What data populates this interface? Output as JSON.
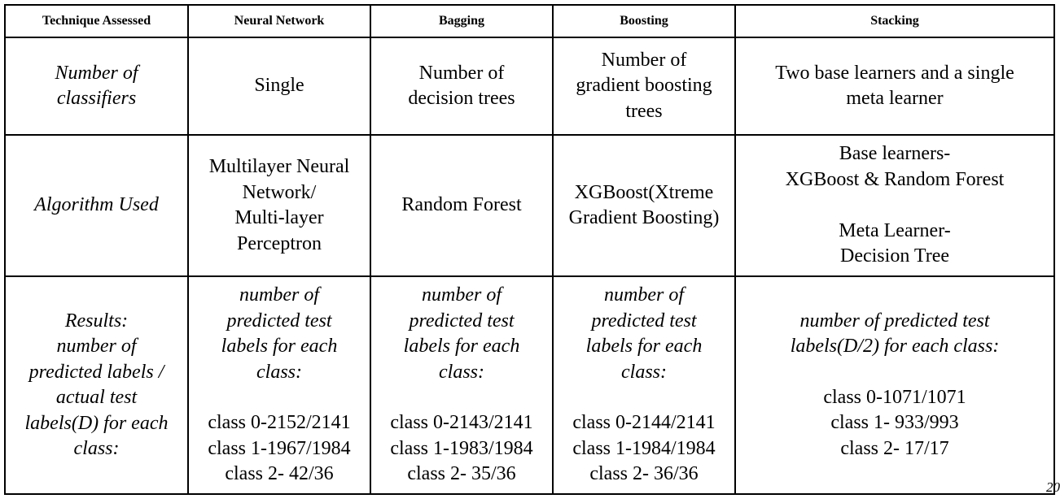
{
  "table": {
    "headers": [
      "Technique Assessed",
      "Neural Network",
      "Bagging",
      "Boosting",
      "Stacking"
    ],
    "rows": [
      {
        "label": "Number of\nclassifiers",
        "cells": [
          "Single",
          "Number of\ndecision trees",
          "Number of\ngradient boosting\ntrees",
          "Two base learners and a single\nmeta learner"
        ]
      },
      {
        "label": "Algorithm Used",
        "cells": [
          "Multilayer Neural\nNetwork/\nMulti-layer\nPerceptron",
          "Random Forest",
          "XGBoost(Xtreme\nGradient Boosting)",
          "Base learners-\nXGBoost & Random Forest\n\nMeta Learner-\nDecision Tree"
        ]
      },
      {
        "label": "Results:\nnumber of\npredicted labels /\nactual test\nlabels(D) for each\nclass:",
        "cells": [
          {
            "intro": "number of\npredicted test\nlabels for each\nclass:",
            "values": "class 0-2152/2141\nclass 1-1967/1984\nclass 2-    42/36"
          },
          {
            "intro": "number of\npredicted test\nlabels for each\nclass:",
            "values": "class 0-2143/2141\nclass 1-1983/1984\nclass 2-    35/36"
          },
          {
            "intro": "number of\npredicted test\nlabels for each\nclass:",
            "values": "class 0-2144/2141\nclass 1-1984/1984\nclass 2-    36/36"
          },
          {
            "intro": "number of predicted test\nlabels(D/2) for each class:",
            "values": "class 0-1071/1071\nclass 1-  933/993\nclass 2-    17/17"
          }
        ]
      }
    ]
  },
  "page_number": "20"
}
